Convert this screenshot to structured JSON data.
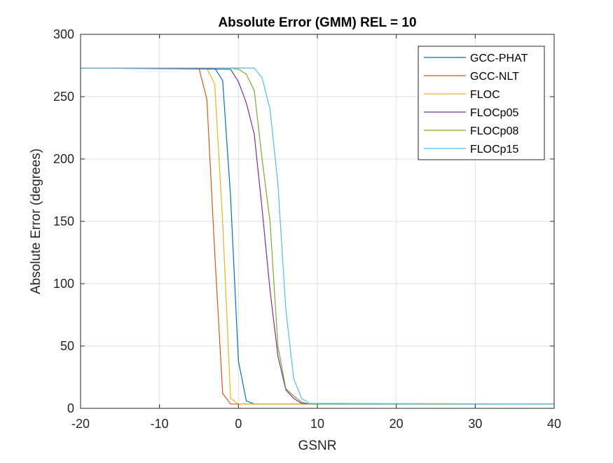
{
  "chart_data": {
    "type": "line",
    "title": "Absolute Error (GMM) REL = 10",
    "xlabel": "GSNR",
    "ylabel": "Absolute Error (degrees)",
    "xlim": [
      -20,
      40
    ],
    "ylim": [
      0,
      300
    ],
    "xticks": [
      -20,
      -10,
      0,
      10,
      20,
      30,
      40
    ],
    "yticks": [
      0,
      50,
      100,
      150,
      200,
      250,
      300
    ],
    "xtick_labels": [
      "-20",
      "-10",
      "0",
      "10",
      "20",
      "30",
      "40"
    ],
    "ytick_labels": [
      "0",
      "50",
      "100",
      "150",
      "200",
      "250",
      "300"
    ],
    "grid": true,
    "legend_position": "top-right",
    "series": [
      {
        "name": "GCC-PHAT",
        "color": "#0072BD",
        "x": [
          -20,
          -3,
          -2,
          -1,
          0,
          1,
          2,
          40
        ],
        "y": [
          273,
          273,
          263,
          170,
          38,
          6,
          3.5,
          3.5
        ]
      },
      {
        "name": "GCC-NLT",
        "color": "#D95319",
        "x": [
          -20,
          -5,
          -4,
          -3,
          -2,
          -1,
          40
        ],
        "y": [
          273,
          273,
          248,
          125,
          12,
          3.5,
          3.5
        ]
      },
      {
        "name": "FLOC",
        "color": "#EDB120",
        "x": [
          -20,
          -4,
          -3,
          -2,
          -1,
          0,
          40
        ],
        "y": [
          273,
          273,
          260,
          150,
          8,
          3.5,
          3.5
        ]
      },
      {
        "name": "FLOCp05",
        "color": "#7E2F8E",
        "x": [
          -20,
          -1,
          0,
          1,
          2,
          3,
          4,
          5,
          6,
          7,
          8,
          9,
          40
        ],
        "y": [
          273,
          272,
          262,
          245,
          220,
          160,
          95,
          42,
          15,
          8,
          4,
          3.5,
          3.5
        ]
      },
      {
        "name": "FLOCp08",
        "color": "#77AC30",
        "x": [
          -20,
          -1,
          0,
          1,
          2,
          3,
          4,
          5,
          6,
          7,
          8,
          9,
          40
        ],
        "y": [
          273,
          273,
          272,
          268,
          255,
          200,
          150,
          50,
          16,
          10,
          5,
          3.5,
          3.5
        ]
      },
      {
        "name": "FLOCp15",
        "color": "#4DBEEE",
        "x": [
          -20,
          2,
          3,
          4,
          5,
          6,
          7,
          8,
          9,
          40
        ],
        "y": [
          273,
          273,
          265,
          240,
          180,
          80,
          24,
          8,
          4,
          3.5
        ]
      }
    ]
  }
}
